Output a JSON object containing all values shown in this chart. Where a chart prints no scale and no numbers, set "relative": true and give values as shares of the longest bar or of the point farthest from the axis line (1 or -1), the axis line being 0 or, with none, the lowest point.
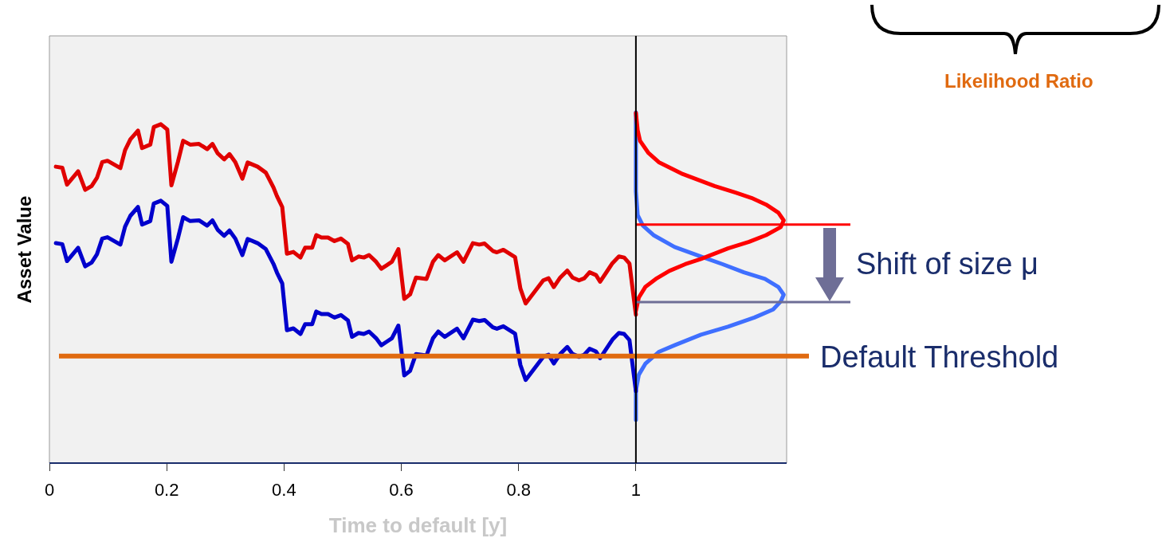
{
  "chart_data": {
    "type": "line",
    "relative": true,
    "xlabel": "Time to default [y]",
    "ylabel": "Asset Value",
    "xlim": [
      0,
      1.257
    ],
    "xticks": [
      0,
      0.2,
      0.4,
      0.6,
      0.8,
      1
    ],
    "grid": false,
    "legend": false,
    "marker": "none",
    "line_style": "solid",
    "annotations": [
      "Shift of size μ",
      "Likelihood Ratio"
    ],
    "ref_lines": [
      {
        "axis": "y",
        "value": 0.305,
        "label": "Default Threshold",
        "color": "#e06a10"
      },
      {
        "axis": "y",
        "value": 0.68,
        "color": "#ff0000"
      },
      {
        "axis": "y",
        "value": 0.459,
        "color": "#6e6e96"
      },
      {
        "axis": "x",
        "value": 1,
        "color": "#000000"
      }
    ],
    "series": [
      {
        "color": "#e00000",
        "x": [
          0.011,
          0.022,
          0.03,
          0.049,
          0.061,
          0.072,
          0.081,
          0.09,
          0.099,
          0.121,
          0.129,
          0.138,
          0.151,
          0.158,
          0.172,
          0.178,
          0.19,
          0.201,
          0.208,
          0.219,
          0.228,
          0.24,
          0.255,
          0.269,
          0.278,
          0.287,
          0.298,
          0.307,
          0.317,
          0.329,
          0.338,
          0.355,
          0.369,
          0.382,
          0.388,
          0.397,
          0.405,
          0.416,
          0.428,
          0.436,
          0.448,
          0.455,
          0.464,
          0.475,
          0.486,
          0.497,
          0.509,
          0.516,
          0.527,
          0.536,
          0.545,
          0.557,
          0.566,
          0.575,
          0.584,
          0.595,
          0.605,
          0.615,
          0.625,
          0.643,
          0.654,
          0.663,
          0.674,
          0.695,
          0.706,
          0.722,
          0.733,
          0.742,
          0.756,
          0.763,
          0.774,
          0.794,
          0.803,
          0.812,
          0.842,
          0.851,
          0.86,
          0.871,
          0.883,
          0.892,
          0.903,
          0.912,
          0.921,
          0.932,
          0.939,
          0.96,
          0.971,
          0.98,
          0.989,
          0.994,
          1.0
        ],
        "values": [
          0.845,
          0.842,
          0.794,
          0.832,
          0.779,
          0.79,
          0.813,
          0.858,
          0.862,
          0.841,
          0.892,
          0.923,
          0.948,
          0.898,
          0.908,
          0.958,
          0.966,
          0.951,
          0.792,
          0.858,
          0.919,
          0.908,
          0.91,
          0.895,
          0.91,
          0.883,
          0.866,
          0.881,
          0.858,
          0.811,
          0.857,
          0.845,
          0.828,
          0.786,
          0.761,
          0.73,
          0.597,
          0.602,
          0.586,
          0.614,
          0.614,
          0.65,
          0.643,
          0.643,
          0.633,
          0.64,
          0.625,
          0.578,
          0.589,
          0.586,
          0.593,
          0.574,
          0.554,
          0.564,
          0.574,
          0.61,
          0.468,
          0.481,
          0.529,
          0.525,
          0.574,
          0.593,
          0.578,
          0.601,
          0.574,
          0.627,
          0.623,
          0.626,
          0.605,
          0.601,
          0.608,
          0.587,
          0.498,
          0.455,
          0.521,
          0.527,
          0.502,
          0.529,
          0.549,
          0.529,
          0.521,
          0.527,
          0.544,
          0.536,
          0.517,
          0.57,
          0.589,
          0.586,
          0.569,
          0.502,
          0.423
        ]
      },
      {
        "color": "#0000cc",
        "x": [
          0.011,
          0.022,
          0.03,
          0.049,
          0.061,
          0.072,
          0.081,
          0.09,
          0.099,
          0.121,
          0.129,
          0.138,
          0.151,
          0.158,
          0.172,
          0.178,
          0.19,
          0.201,
          0.208,
          0.219,
          0.228,
          0.24,
          0.255,
          0.269,
          0.278,
          0.287,
          0.298,
          0.307,
          0.317,
          0.329,
          0.338,
          0.355,
          0.369,
          0.382,
          0.388,
          0.397,
          0.405,
          0.416,
          0.428,
          0.436,
          0.448,
          0.455,
          0.464,
          0.475,
          0.486,
          0.497,
          0.509,
          0.516,
          0.527,
          0.536,
          0.545,
          0.557,
          0.566,
          0.575,
          0.584,
          0.595,
          0.605,
          0.615,
          0.625,
          0.643,
          0.654,
          0.663,
          0.674,
          0.695,
          0.706,
          0.722,
          0.733,
          0.742,
          0.756,
          0.763,
          0.774,
          0.794,
          0.803,
          0.812,
          0.842,
          0.851,
          0.86,
          0.871,
          0.883,
          0.892,
          0.903,
          0.912,
          0.921,
          0.932,
          0.939,
          0.96,
          0.971,
          0.98,
          0.989,
          0.994,
          1.0
        ],
        "values": [
          0.627,
          0.624,
          0.576,
          0.614,
          0.561,
          0.572,
          0.595,
          0.64,
          0.644,
          0.623,
          0.674,
          0.705,
          0.73,
          0.68,
          0.69,
          0.74,
          0.748,
          0.733,
          0.574,
          0.64,
          0.701,
          0.69,
          0.692,
          0.677,
          0.692,
          0.665,
          0.648,
          0.663,
          0.64,
          0.593,
          0.639,
          0.627,
          0.61,
          0.568,
          0.543,
          0.512,
          0.379,
          0.384,
          0.368,
          0.396,
          0.396,
          0.432,
          0.425,
          0.425,
          0.415,
          0.422,
          0.407,
          0.36,
          0.371,
          0.368,
          0.375,
          0.356,
          0.336,
          0.346,
          0.356,
          0.392,
          0.25,
          0.263,
          0.311,
          0.307,
          0.356,
          0.375,
          0.36,
          0.383,
          0.356,
          0.409,
          0.405,
          0.408,
          0.387,
          0.383,
          0.39,
          0.369,
          0.28,
          0.237,
          0.303,
          0.309,
          0.284,
          0.311,
          0.331,
          0.311,
          0.303,
          0.309,
          0.326,
          0.318,
          0.299,
          0.352,
          0.371,
          0.368,
          0.351,
          0.284,
          0.205
        ]
      },
      {
        "color": "#ff0000",
        "x": [
          1.0,
          1.003,
          1.007,
          1.021,
          1.039,
          1.08,
          1.134,
          1.17,
          1.197,
          1.222,
          1.243,
          1.252,
          1.247,
          1.222,
          1.193,
          1.157,
          1.111,
          1.084,
          1.057,
          1.034,
          1.016,
          1.005,
          1.0
        ],
        "values": [
          0.998,
          0.949,
          0.919,
          0.885,
          0.858,
          0.824,
          0.79,
          0.771,
          0.756,
          0.737,
          0.714,
          0.692,
          0.673,
          0.65,
          0.631,
          0.612,
          0.582,
          0.567,
          0.548,
          0.525,
          0.502,
          0.472,
          0.434
        ]
      },
      {
        "color": "#3f6fff",
        "x": [
          1.0,
          1.0,
          1.003,
          1.012,
          1.03,
          1.066,
          1.111,
          1.148,
          1.184,
          1.22,
          1.243,
          1.252,
          1.247,
          1.234,
          1.202,
          1.157,
          1.111,
          1.066,
          1.039,
          1.016,
          1.005,
          1.0,
          1.0
        ],
        "values": [
          1.0,
          0.775,
          0.707,
          0.677,
          0.65,
          0.616,
          0.589,
          0.567,
          0.544,
          0.525,
          0.502,
          0.48,
          0.461,
          0.438,
          0.415,
          0.389,
          0.366,
          0.336,
          0.317,
          0.283,
          0.252,
          0.207,
          0.123
        ]
      }
    ]
  }
}
